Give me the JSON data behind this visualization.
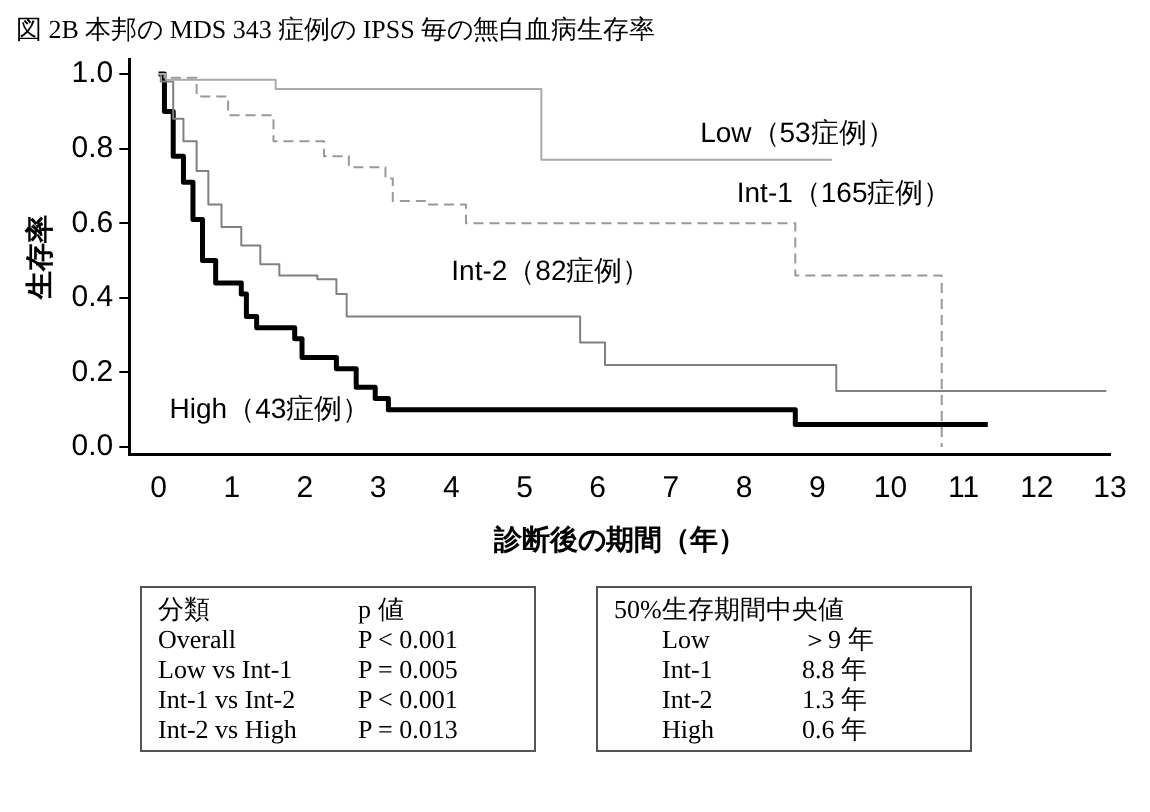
{
  "chart_data": {
    "type": "step",
    "title": "図 2B 本邦の MDS 343 症例の IPSS 毎の無白血病生存率",
    "xlabel": "診断後の期間（年）",
    "ylabel": "生存率",
    "xlim": [
      -0.4,
      13
    ],
    "xticks": [
      0,
      1,
      2,
      3,
      4,
      5,
      6,
      7,
      8,
      9,
      10,
      11,
      12,
      13
    ],
    "ylim": [
      -0.02,
      1.04
    ],
    "yticks": [
      {
        "value": 0,
        "label": "0.0"
      },
      {
        "value": 0.2,
        "label": "0.2"
      },
      {
        "value": 0.4,
        "label": "0.4"
      },
      {
        "value": 0.6,
        "label": "0.6"
      },
      {
        "value": 0.8,
        "label": "0.8"
      },
      {
        "value": 1,
        "label": "1.0"
      }
    ],
    "grid": false,
    "legend": false,
    "marker": "none",
    "series": [
      {
        "name": "Low（53症例）",
        "color": "#aaaaaa",
        "line_style": "solid",
        "x": [
          0,
          0.1,
          1.6,
          5.23,
          9.2
        ],
        "values": [
          1.0,
          0.985,
          0.96,
          0.77,
          0.77
        ]
      },
      {
        "name": "Int-1（165症例）",
        "color": "#999999",
        "line_style": "dashed",
        "x": [
          0,
          0.08,
          0.52,
          0.95,
          1.57,
          2.26,
          2.6,
          3.1,
          3.2,
          3.66,
          4.2,
          8.7,
          10.7
        ],
        "values": [
          1.0,
          0.99,
          0.94,
          0.89,
          0.82,
          0.78,
          0.75,
          0.72,
          0.66,
          0.65,
          0.6,
          0.46,
          0
        ]
      },
      {
        "name": "Int-2（82症例）",
        "color": "#808080",
        "line_style": "solid",
        "x": [
          0,
          0.03,
          0.2,
          0.34,
          0.52,
          0.68,
          0.86,
          1.13,
          1.39,
          1.65,
          2.17,
          2.43,
          2.57,
          5.76,
          6.1,
          9.26,
          12.95
        ],
        "values": [
          1.0,
          0.98,
          0.88,
          0.82,
          0.74,
          0.65,
          0.59,
          0.54,
          0.49,
          0.46,
          0.45,
          0.41,
          0.35,
          0.28,
          0.22,
          0.15,
          0.15
        ]
      },
      {
        "name": "High（43症例）",
        "color": "#000000",
        "line_style": "solid",
        "x": [
          0,
          0.08,
          0.2,
          0.34,
          0.47,
          0.6,
          0.78,
          1.13,
          1.2,
          1.34,
          1.86,
          1.96,
          2.43,
          2.7,
          2.96,
          3.14,
          8.7,
          11.33
        ],
        "values": [
          1.0,
          0.9,
          0.78,
          0.71,
          0.61,
          0.5,
          0.44,
          0.41,
          0.35,
          0.32,
          0.29,
          0.24,
          0.21,
          0.16,
          0.13,
          0.1,
          0.06,
          0.06
        ]
      }
    ],
    "annotations": [
      "分類\tp 値",
      "Overall\tP < 0.001",
      "Low vs Int-1\tP = 0.005",
      "Int-1 vs Int-2\tP < 0.001",
      "Int-2 vs High\tP = 0.013",
      "50%生存期間中央値",
      "Low\t＞9 年",
      "Int-1\t8.8 年",
      "Int-2\t1.3 年",
      "High\t0.6 年"
    ]
  }
}
